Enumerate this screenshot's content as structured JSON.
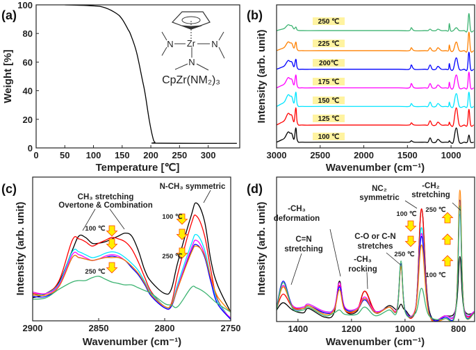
{
  "chart_data": [
    {
      "id": "a",
      "panel_label": "(a)",
      "type": "line",
      "xlabel": "Temperature [℃]",
      "ylabel": "Weight [%]",
      "xlim": [
        0,
        355
      ],
      "ylim": [
        0,
        100
      ],
      "xticks": [
        0,
        50,
        100,
        150,
        200,
        250,
        300
      ],
      "yticks": [
        0,
        20,
        40,
        60,
        80,
        100
      ],
      "grid": false,
      "inset_formula": "CpZr(NM₂)₃",
      "inset_atoms": {
        "metal": "Zr",
        "nitrogen": "N"
      },
      "series": [
        {
          "color": "#000000",
          "x": [
            50,
            100,
            120,
            140,
            150,
            160,
            165,
            175,
            185,
            190,
            197,
            203,
            207,
            215,
            350
          ],
          "y": [
            100,
            99.3,
            98,
            94,
            90,
            83,
            79,
            67,
            48,
            38,
            20,
            8,
            4,
            3.3,
            3.2
          ]
        }
      ]
    },
    {
      "id": "b",
      "panel_label": "(b)",
      "type": "line",
      "xlabel": "Wavenumber (cm⁻¹)",
      "ylabel": "Intensity (arb. unit)",
      "xlim": [
        3000,
        730
      ],
      "ylim": [
        0,
        100
      ],
      "xticks": [
        3000,
        2500,
        2000,
        1500,
        1000
      ],
      "grid": false,
      "x": [
        3000,
        2950,
        2910,
        2870,
        2845,
        2825,
        2800,
        2778,
        2760,
        2700,
        2500,
        2000,
        1600,
        1480,
        1455,
        1420,
        1300,
        1265,
        1240,
        1215,
        1175,
        1150,
        1110,
        1060,
        1030,
        1020,
        1005,
        975,
        940,
        905,
        850,
        815,
        795,
        775,
        740
      ],
      "series": [
        {
          "name": "100 ℃",
          "color": "#000000",
          "values": [
            4,
            5.4,
            6.8,
            11,
            10.3,
            10,
            6.1,
            14,
            5,
            4,
            4,
            4,
            4,
            4,
            5,
            4,
            4,
            4,
            7,
            4,
            4,
            6,
            4,
            4,
            4,
            5,
            4,
            4,
            14,
            4,
            4,
            4,
            9,
            4,
            4
          ]
        },
        {
          "name": "125 ℃",
          "color": "#ff0000",
          "values": [
            16,
            17.6,
            19.2,
            24,
            23.2,
            22.8,
            18.4,
            28,
            17.2,
            16,
            16,
            16,
            16,
            16,
            17.5,
            16,
            16,
            16,
            19,
            16,
            16,
            18,
            16,
            16,
            16,
            18,
            16,
            16,
            28,
            16,
            16,
            16,
            27,
            16,
            16
          ]
        },
        {
          "name": "150 ℃",
          "color": "#00e5ff",
          "values": [
            29,
            30.6,
            32.2,
            37,
            36.2,
            35.8,
            31.4,
            39,
            30,
            29,
            29,
            29,
            29,
            29,
            31,
            29,
            29,
            29,
            32,
            29,
            29,
            31,
            29,
            29,
            29,
            32,
            29,
            29,
            38,
            29,
            29,
            29,
            39,
            29,
            29
          ]
        },
        {
          "name": "175 ℃",
          "color": "#ff00ff",
          "values": [
            42,
            43.4,
            44.8,
            49,
            48.3,
            48,
            44.1,
            51,
            42.9,
            42,
            42,
            42,
            42,
            42,
            45,
            42,
            42,
            42,
            45,
            42,
            42,
            44,
            42,
            42,
            42,
            46,
            42,
            42,
            51,
            42,
            42,
            42,
            53,
            42,
            42
          ]
        },
        {
          "name": "200℃",
          "color": "#0000ff",
          "values": [
            55,
            56.2,
            57.4,
            61,
            60.4,
            60.1,
            56.8,
            62,
            55.7,
            55,
            55,
            55,
            55,
            55,
            58,
            55,
            55,
            55,
            58,
            55,
            55,
            57,
            55,
            55,
            55,
            59,
            55,
            55,
            63,
            55,
            55,
            55,
            67,
            55,
            55
          ]
        },
        {
          "name": "225 ℃",
          "color": "#ff8000",
          "values": [
            68,
            69.2,
            70.4,
            74,
            73.4,
            73.1,
            69.8,
            74,
            68.6,
            68,
            68,
            68,
            68,
            68,
            70,
            68,
            68,
            68,
            70,
            68,
            68,
            70,
            68,
            68,
            68,
            72,
            68,
            68,
            74,
            68,
            68,
            68,
            81,
            68,
            68
          ]
        },
        {
          "name": "250 ℃",
          "color": "#3cb371",
          "values": [
            82,
            82.8,
            83.6,
            86,
            85.6,
            85.4,
            83.2,
            84.5,
            82.3,
            82,
            82,
            82,
            82,
            82,
            84,
            82,
            82,
            82,
            83,
            82,
            82,
            83,
            82,
            82,
            82,
            87,
            82,
            82,
            84,
            82,
            82,
            82,
            94,
            82,
            82
          ]
        }
      ],
      "label_box_color": "#fff3a0"
    },
    {
      "id": "c",
      "panel_label": "(c)",
      "type": "line",
      "xlabel": "Wavenumber (cm⁻¹)",
      "ylabel": "Intensity (arb. unit)",
      "xlim": [
        2900,
        2750
      ],
      "ylim": [
        0,
        100
      ],
      "xticks": [
        2900,
        2850,
        2800,
        2750
      ],
      "grid": false,
      "x": [
        2900,
        2890,
        2880,
        2870,
        2865,
        2860,
        2855,
        2850,
        2845,
        2840,
        2835,
        2830,
        2825,
        2820,
        2815,
        2810,
        2800,
        2795,
        2790,
        2780,
        2776,
        2770,
        2765,
        2760,
        2750
      ],
      "series": [
        {
          "color": "#000000",
          "values": [
            16,
            19,
            27,
            49,
            59,
            58,
            54,
            54,
            55,
            57,
            59,
            61,
            59,
            49,
            35,
            27,
            19,
            22,
            41,
            73,
            82,
            70,
            42,
            25,
            6
          ]
        },
        {
          "color": "#ff0000",
          "values": [
            19,
            19,
            28,
            56,
            57,
            55,
            52,
            54,
            56,
            58,
            57,
            55,
            50,
            41,
            30,
            20,
            10,
            12,
            33,
            67,
            73,
            60,
            35,
            15,
            1
          ]
        },
        {
          "color": "#00e5ff",
          "values": [
            18,
            19,
            26,
            48,
            48,
            46,
            44,
            45,
            47,
            48,
            47,
            44,
            40,
            35,
            27,
            19,
            10,
            11,
            26,
            53,
            60,
            50,
            30,
            14,
            1
          ]
        },
        {
          "color": "#ff00ff",
          "values": [
            20,
            19,
            25,
            46,
            46,
            44,
            42,
            43,
            45,
            46,
            45,
            42,
            38,
            33,
            26,
            18,
            9,
            10,
            24,
            50,
            56,
            47,
            28,
            12,
            2
          ]
        },
        {
          "color": "#0000ff",
          "values": [
            17,
            17,
            24,
            44,
            44,
            43,
            42,
            43,
            44,
            45,
            44,
            42,
            37,
            32,
            25,
            17,
            9,
            10,
            23,
            48,
            53,
            45,
            27,
            12,
            1
          ]
        },
        {
          "color": "#ff8000",
          "values": [
            18,
            18,
            24,
            44,
            44,
            43,
            42,
            43,
            44,
            44,
            44,
            42,
            38,
            33,
            26,
            18,
            10,
            11,
            23,
            47,
            52,
            46,
            30,
            17,
            6
          ]
        },
        {
          "color": "#3cb371",
          "values": [
            15,
            16,
            22,
            27,
            28,
            28,
            30,
            31,
            29,
            27,
            26,
            25,
            25,
            23,
            21,
            19,
            12,
            11,
            10,
            23,
            23,
            20,
            16,
            12,
            6
          ]
        }
      ],
      "annotations": {
        "ch3_line1": "CH₃ stretching",
        "ch3_line2": "Overtone & Combination",
        "nch3": "N-CH₃ symmetric",
        "temp_high": "100 ℃",
        "temp_low": "250 ℃"
      },
      "arrow_color": "#ffee00",
      "arrow_outline": "#ff4000"
    },
    {
      "id": "d",
      "panel_label": "(d)",
      "type": "line",
      "xlabel": "Wavenumber (cm⁻¹)",
      "ylabel": "Intensity (arb. unit)",
      "xlim": [
        1480,
        740
      ],
      "ylim": [
        0,
        100
      ],
      "xticks": [
        1400,
        1200,
        1000,
        800
      ],
      "grid": false,
      "x": [
        1480,
        1455,
        1420,
        1380,
        1360,
        1300,
        1265,
        1245,
        1225,
        1180,
        1150,
        1110,
        1060,
        1030,
        1015,
        1000,
        960,
        938,
        910,
        850,
        810,
        795,
        780,
        740
      ],
      "series": [
        {
          "color": "#000000",
          "values": [
            8,
            13,
            8,
            6,
            9,
            3,
            6,
            28,
            8,
            7,
            21,
            6,
            11,
            8,
            12,
            8,
            9,
            78,
            8,
            4,
            9,
            45,
            9,
            6
          ]
        },
        {
          "color": "#ff0000",
          "values": [
            9,
            19,
            10,
            9,
            11,
            6,
            8,
            25,
            8,
            8,
            21,
            7,
            10,
            9,
            40,
            8,
            10,
            78,
            6,
            4,
            10,
            80,
            10,
            6
          ]
        },
        {
          "color": "#00e5ff",
          "values": [
            10,
            25,
            11,
            10,
            12,
            7,
            9,
            24,
            9,
            9,
            16,
            7,
            10,
            9,
            38,
            8,
            10,
            65,
            6,
            4,
            10,
            74,
            10,
            7
          ]
        },
        {
          "color": "#ff00ff",
          "values": [
            10,
            25,
            11,
            10,
            12,
            7,
            9,
            27,
            10,
            9,
            17,
            7,
            10,
            9,
            38,
            8,
            10,
            61,
            6,
            4,
            10,
            78,
            10,
            7
          ]
        },
        {
          "color": "#0000ff",
          "values": [
            9,
            28,
            10,
            9,
            11,
            6,
            8,
            24,
            9,
            8,
            15,
            6,
            10,
            8,
            40,
            8,
            9,
            59,
            6,
            3,
            9,
            84,
            9,
            6
          ]
        },
        {
          "color": "#ff8000",
          "values": [
            9,
            24,
            10,
            9,
            11,
            5,
            8,
            22,
            8,
            8,
            16,
            6,
            10,
            8,
            38,
            7,
            9,
            53,
            5,
            2,
            9,
            91,
            9,
            6
          ]
        },
        {
          "color": "#3cb371",
          "values": [
            8,
            27,
            9,
            8,
            10,
            4,
            6,
            8,
            5,
            5,
            10,
            4,
            8,
            7,
            42,
            7,
            6,
            23,
            4,
            2,
            8,
            80,
            8,
            6
          ]
        }
      ],
      "annotations": {
        "cn_line1": "C=N",
        "cn_line2": "stretching",
        "def_line1": "-CH₃",
        "def_line2": "deformation",
        "co_line1": "C-O or C-N",
        "co_line2": "stretches",
        "rock_line1": "-CH₃",
        "rock_line2": "rocking",
        "nc2_line1": "NC₂",
        "nc2_line2": "symmetric",
        "ch2_line1": "-CH₂",
        "ch2_line2": "stretching",
        "temp_100": "100 ℃",
        "temp_250": "250 ℃"
      },
      "arrow_color": "#ffee00",
      "arrow_outline": "#ff4000"
    }
  ]
}
